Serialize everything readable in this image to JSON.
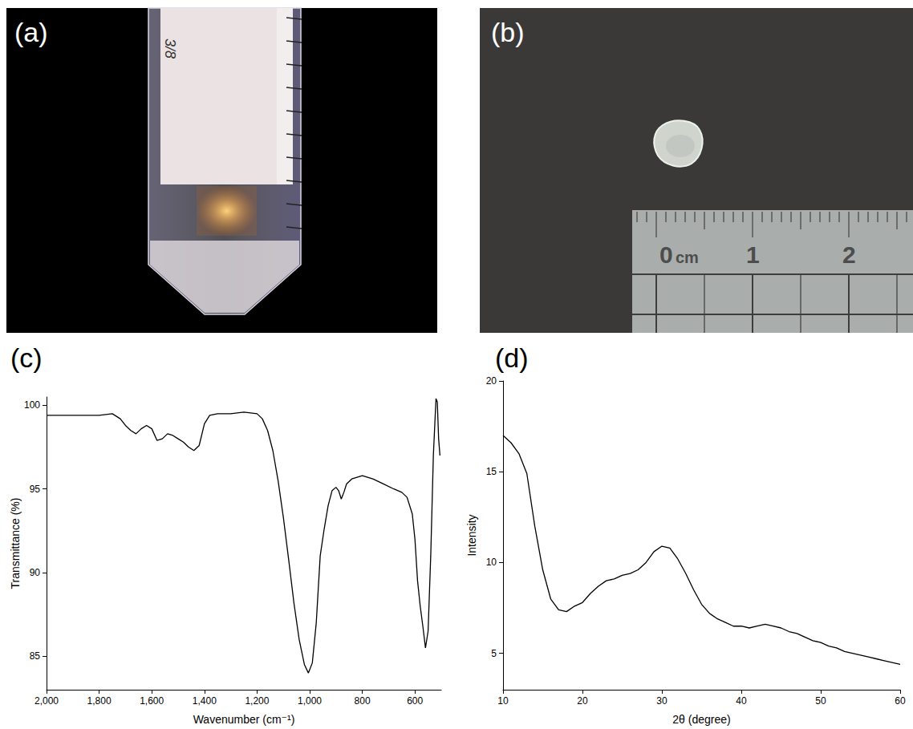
{
  "panels": [
    {
      "label": "(a)",
      "texts": [
        "3/8"
      ]
    },
    {
      "label": "(b)",
      "ruler_labels": [
        "0",
        "cm",
        "1",
        "2"
      ]
    }
  ],
  "chart_data": [
    {
      "panel": "(c)",
      "type": "line",
      "color": "#000000",
      "xlabel": "Wavenumber (cm⁻¹)",
      "ylabel": "Transmittance (%)",
      "x": [
        2000,
        1950,
        1900,
        1850,
        1800,
        1750,
        1720,
        1700,
        1680,
        1660,
        1640,
        1620,
        1600,
        1580,
        1560,
        1540,
        1520,
        1500,
        1480,
        1460,
        1440,
        1420,
        1400,
        1380,
        1350,
        1300,
        1250,
        1200,
        1180,
        1160,
        1140,
        1120,
        1100,
        1080,
        1060,
        1040,
        1020,
        1005,
        990,
        975,
        960,
        945,
        930,
        915,
        900,
        890,
        880,
        870,
        860,
        840,
        800,
        760,
        720,
        680,
        650,
        630,
        610,
        600,
        590,
        580,
        570,
        560,
        550,
        540,
        530,
        520,
        515,
        510,
        505
      ],
      "values": [
        99.4,
        99.4,
        99.4,
        99.4,
        99.4,
        99.5,
        99.2,
        98.8,
        98.5,
        98.3,
        98.6,
        98.8,
        98.6,
        97.9,
        98.0,
        98.3,
        98.2,
        98.0,
        97.8,
        97.5,
        97.3,
        97.6,
        98.9,
        99.4,
        99.5,
        99.5,
        99.6,
        99.5,
        99.2,
        98.5,
        97.3,
        95.5,
        93.3,
        90.8,
        88.2,
        86.0,
        84.5,
        84.0,
        84.6,
        87.0,
        91.0,
        92.6,
        94.0,
        94.9,
        95.1,
        94.9,
        94.4,
        94.8,
        95.3,
        95.6,
        95.8,
        95.6,
        95.3,
        95.0,
        94.8,
        94.5,
        93.5,
        92.0,
        89.5,
        88.0,
        86.8,
        85.5,
        86.5,
        91.0,
        97.0,
        100.4,
        100.2,
        98.0,
        97.0
      ],
      "xlim": [
        2000,
        500
      ],
      "xticks": [
        {
          "value": 2000,
          "label": "2,000"
        },
        {
          "value": 1800,
          "label": "1,800"
        },
        {
          "value": 1600,
          "label": "1,600"
        },
        {
          "value": 1400,
          "label": "1,400"
        },
        {
          "value": 1200,
          "label": "1,200"
        },
        {
          "value": 1000,
          "label": "1,000"
        },
        800,
        600
      ],
      "ylim": [
        83,
        100.5
      ],
      "yticks": [
        85,
        90,
        95,
        100
      ],
      "grid": false
    },
    {
      "panel": "(d)",
      "type": "line",
      "color": "#000000",
      "xlabel": "2θ (degree)",
      "ylabel": "Intensity",
      "x": [
        10,
        11,
        12,
        13,
        14,
        15,
        16,
        17,
        18,
        19,
        20,
        21,
        22,
        23,
        24,
        25,
        26,
        27,
        28,
        29,
        30,
        31,
        32,
        33,
        34,
        35,
        36,
        37,
        38,
        39,
        40,
        41,
        42,
        43,
        44,
        45,
        46,
        47,
        48,
        49,
        50,
        51,
        52,
        53,
        54,
        55,
        56,
        57,
        58,
        59,
        60
      ],
      "values": [
        17.0,
        16.6,
        16.0,
        14.9,
        12.0,
        9.6,
        8.0,
        7.4,
        7.3,
        7.6,
        7.8,
        8.3,
        8.7,
        9.0,
        9.1,
        9.3,
        9.4,
        9.6,
        10.0,
        10.6,
        10.9,
        10.8,
        10.2,
        9.4,
        8.5,
        7.7,
        7.2,
        6.9,
        6.7,
        6.5,
        6.5,
        6.4,
        6.5,
        6.6,
        6.5,
        6.4,
        6.2,
        6.1,
        5.9,
        5.7,
        5.6,
        5.4,
        5.3,
        5.1,
        5.0,
        4.9,
        4.8,
        4.7,
        4.6,
        4.5,
        4.4
      ],
      "xlim": [
        10,
        60
      ],
      "xticks": [
        10,
        20,
        30,
        40,
        50,
        60
      ],
      "ylim": [
        3,
        20
      ],
      "yticks": [
        5,
        10,
        15,
        20
      ],
      "grid": false
    }
  ]
}
